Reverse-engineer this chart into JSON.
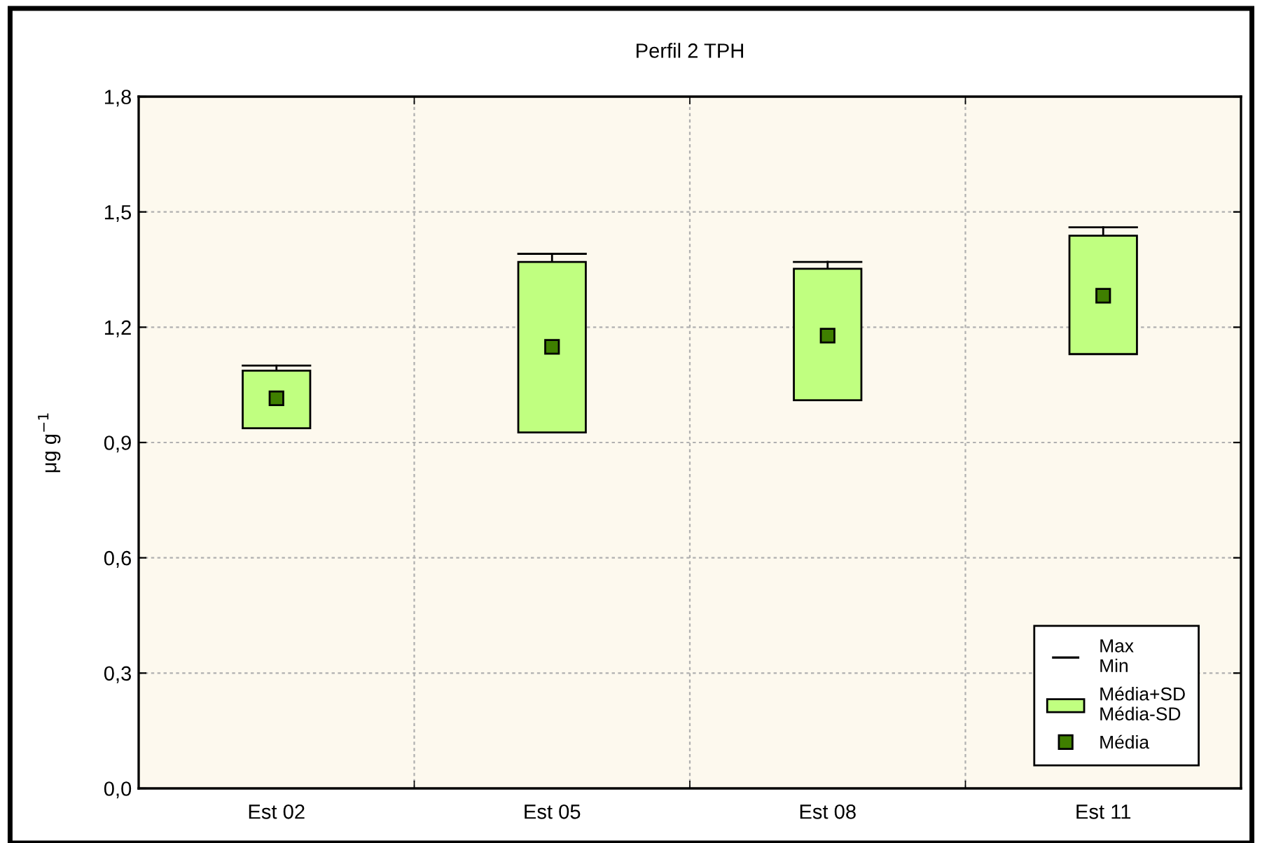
{
  "chart_data": {
    "type": "box",
    "title": "Perfil 2 TPH",
    "ylabel": "μg g$^{−1}$",
    "categories": [
      "Est 02",
      "Est 05",
      "Est 08",
      "Est 11"
    ],
    "series": [
      {
        "name": "Média+SD\nMédia-SD",
        "type": "box",
        "color": "#c0ff80",
        "boxes": [
          {
            "low": null,
            "q1": 0.937,
            "median": null,
            "q3": 1.087,
            "high": 1.1
          },
          {
            "low": null,
            "q1": 0.926,
            "median": null,
            "q3": 1.37,
            "high": 1.391
          },
          {
            "low": null,
            "q1": 1.01,
            "median": null,
            "q3": 1.352,
            "high": 1.37
          },
          {
            "low": null,
            "q1": 1.13,
            "median": null,
            "q3": 1.438,
            "high": 1.46
          }
        ]
      },
      {
        "name": "Média",
        "type": "scatter",
        "color": "#3f7f00",
        "x": [
          "Est 02",
          "Est 05",
          "Est 08",
          "Est 11"
        ],
        "values": [
          1.015,
          1.149,
          1.178,
          1.282
        ]
      }
    ],
    "marker": "square",
    "ylim": [
      0,
      1.8
    ],
    "yticks": [
      {
        "value": 0,
        "label": "0,0"
      },
      {
        "value": 0.3,
        "label": "0,3"
      },
      {
        "value": 0.6,
        "label": "0,6"
      },
      {
        "value": 0.9,
        "label": "0,9"
      },
      {
        "value": 1.2,
        "label": "1,2"
      },
      {
        "value": 1.5,
        "label": "1,5"
      },
      {
        "value": 1.8,
        "label": "1,8"
      }
    ],
    "grid": true,
    "legend": "bottom right",
    "annotations": [
      "Max\nMin"
    ]
  }
}
